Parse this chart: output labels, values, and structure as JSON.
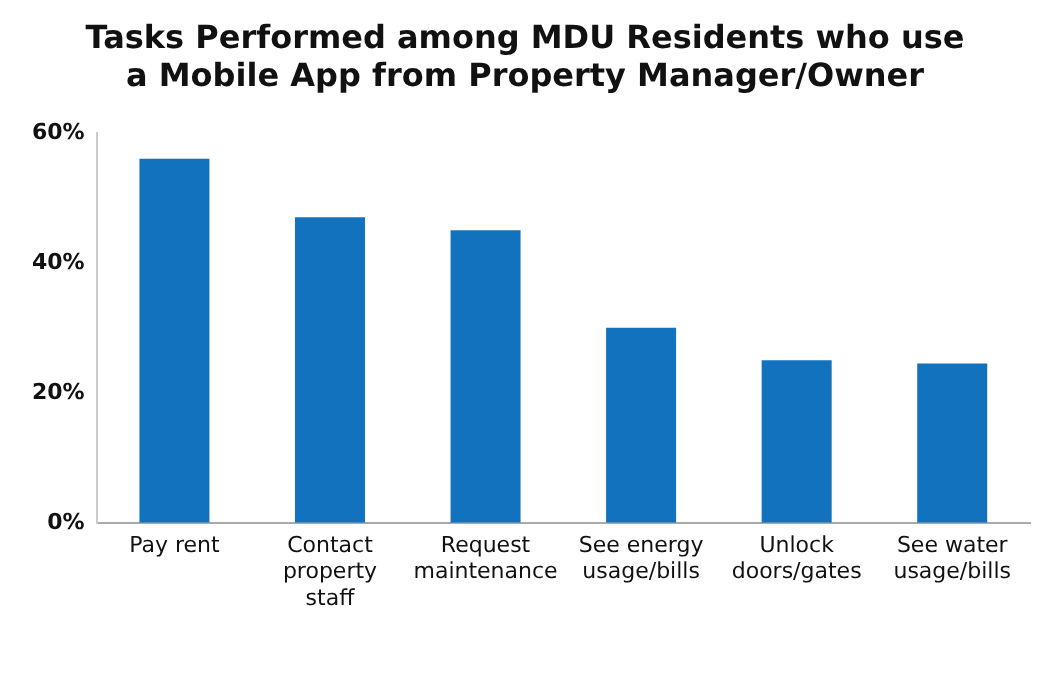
{
  "chart_data": {
    "type": "bar",
    "title": "Tasks Performed among MDU Residents who use a Mobile App from Property Manager/Owner",
    "categories": [
      "Pay rent",
      "Contact property staff",
      "Request maintenance",
      "See energy usage/bills",
      "Unlock doors/gates",
      "See water usage/bills"
    ],
    "values": [
      56,
      47,
      45,
      30,
      25,
      24.5
    ],
    "color": "#1272bd",
    "ylim": [
      0,
      60
    ],
    "yticks": [
      {
        "value": 0,
        "label": "0%"
      },
      {
        "value": 20,
        "label": "20%"
      },
      {
        "value": 40,
        "label": "40%"
      },
      {
        "value": 60,
        "label": "60%"
      }
    ],
    "grid": false,
    "legend": false
  }
}
